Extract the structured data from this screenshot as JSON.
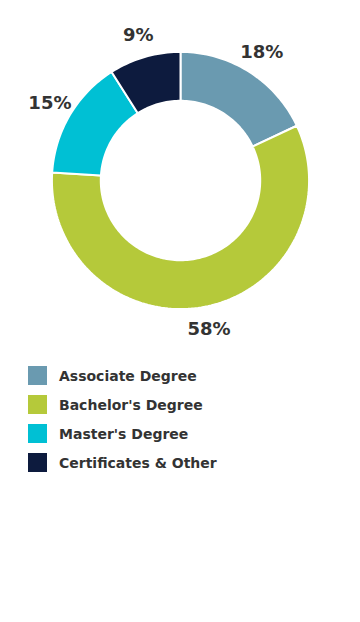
{
  "chart_data": {
    "type": "pie",
    "categories": [
      "Associate Degree",
      "Bachelor's Degree",
      "Master's Degree",
      "Certificates & Other"
    ],
    "values": [
      18,
      58,
      15,
      9
    ],
    "value_labels": [
      "18%",
      "58%",
      "15%",
      "9%"
    ],
    "colors": [
      "#6a9ab0",
      "#b5c93a",
      "#00c0d4",
      "#0d1b3e"
    ],
    "data_labels": true,
    "legend": "bottom"
  }
}
